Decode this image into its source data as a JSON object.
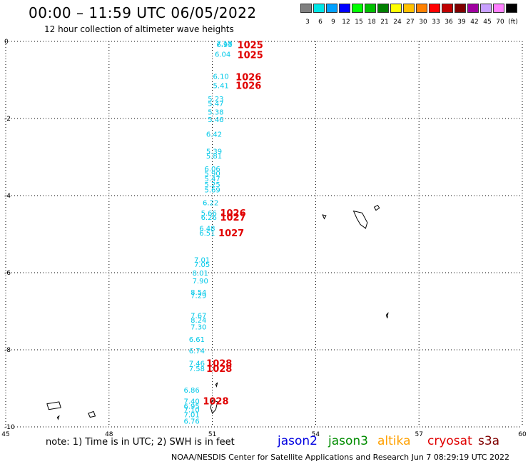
{
  "header": {
    "title": "00:00 – 11:59 UTC 06/05/2022",
    "subtitle": "12 hour collection of altimeter wave heights"
  },
  "colorbar": {
    "labels": [
      "3",
      "6",
      "9",
      "12",
      "15",
      "18",
      "21",
      "24",
      "27",
      "30",
      "33",
      "36",
      "39",
      "42",
      "45",
      "70",
      "(ft)"
    ],
    "colors": [
      "#808080",
      "#00e5e5",
      "#00a0ff",
      "#0000ff",
      "#00ff00",
      "#00c000",
      "#008000",
      "#ffff00",
      "#ffc000",
      "#ff8000",
      "#ff0000",
      "#c00000",
      "#800000",
      "#a000a0",
      "#c8a0ff",
      "#ff80ff",
      "#000000"
    ]
  },
  "axes": {
    "x_ticks": [
      "45",
      "48",
      "51",
      "54",
      "57",
      "60"
    ],
    "y_ticks": [
      "0",
      "-2",
      "-4",
      "-6",
      "-8",
      "-10"
    ],
    "x_range": [
      45,
      60
    ],
    "y_range": [
      -10,
      0
    ]
  },
  "swh_readings": [
    {
      "text": "7.18",
      "lon": 51.35,
      "lat": -0.05
    },
    {
      "text": "6.93",
      "lon": 51.35,
      "lat": -0.07
    },
    {
      "text": "6.04",
      "lon": 51.3,
      "lat": -0.32
    },
    {
      "text": "6.10",
      "lon": 51.25,
      "lat": -0.9
    },
    {
      "text": "5.41",
      "lon": 51.25,
      "lat": -1.14
    },
    {
      "text": "5.23",
      "lon": 51.1,
      "lat": -1.48
    },
    {
      "text": "5.47",
      "lon": 51.1,
      "lat": -1.6
    },
    {
      "text": "5.38",
      "lon": 51.1,
      "lat": -1.82
    },
    {
      "text": "5.46",
      "lon": 51.1,
      "lat": -2.02
    },
    {
      "text": "6.42",
      "lon": 51.05,
      "lat": -2.4
    },
    {
      "text": "5.39",
      "lon": 51.05,
      "lat": -2.84
    },
    {
      "text": "5.81",
      "lon": 51.05,
      "lat": -2.96
    },
    {
      "text": "6.06",
      "lon": 51.0,
      "lat": -3.3
    },
    {
      "text": "5.90",
      "lon": 51.0,
      "lat": -3.42
    },
    {
      "text": "5.47",
      "lon": 51.0,
      "lat": -3.56
    },
    {
      "text": "5.25",
      "lon": 51.0,
      "lat": -3.7
    },
    {
      "text": "5.69",
      "lon": 51.0,
      "lat": -3.84
    },
    {
      "text": "6.22",
      "lon": 50.95,
      "lat": -4.18
    },
    {
      "text": "5.66",
      "lon": 50.9,
      "lat": -4.44
    },
    {
      "text": "6.26",
      "lon": 50.9,
      "lat": -4.56
    },
    {
      "text": "6.48",
      "lon": 50.85,
      "lat": -4.84
    },
    {
      "text": "6.51",
      "lon": 50.85,
      "lat": -4.96
    },
    {
      "text": "7.01",
      "lon": 50.7,
      "lat": -5.66
    },
    {
      "text": "7.05",
      "lon": 50.7,
      "lat": -5.78
    },
    {
      "text": "8.01",
      "lon": 50.65,
      "lat": -6.0
    },
    {
      "text": "7.90",
      "lon": 50.65,
      "lat": -6.2
    },
    {
      "text": "8.54",
      "lon": 50.6,
      "lat": -6.5
    },
    {
      "text": "7.29",
      "lon": 50.6,
      "lat": -6.58
    },
    {
      "text": "7.67",
      "lon": 50.6,
      "lat": -7.1
    },
    {
      "text": "8.24",
      "lon": 50.6,
      "lat": -7.22
    },
    {
      "text": "7.30",
      "lon": 50.6,
      "lat": -7.4
    },
    {
      "text": "6.61",
      "lon": 50.55,
      "lat": -7.72
    },
    {
      "text": "6.74",
      "lon": 50.55,
      "lat": -8.02
    },
    {
      "text": "7.46",
      "lon": 50.55,
      "lat": -8.34
    },
    {
      "text": "7.58",
      "lon": 50.55,
      "lat": -8.48
    },
    {
      "text": "6.86",
      "lon": 50.4,
      "lat": -9.04
    },
    {
      "text": "7.40",
      "lon": 50.4,
      "lat": -9.32
    },
    {
      "text": "6.95",
      "lon": 50.4,
      "lat": -9.45
    },
    {
      "text": "7.10",
      "lon": 50.4,
      "lat": -9.55
    },
    {
      "text": "7.01",
      "lon": 50.4,
      "lat": -9.68
    },
    {
      "text": "6.76",
      "lon": 50.4,
      "lat": -9.84
    }
  ],
  "pressure_readings": [
    {
      "text": "1025",
      "lon": 52.1,
      "lat": -0.08
    },
    {
      "text": "1025",
      "lon": 52.1,
      "lat": -0.34
    },
    {
      "text": "1026",
      "lon": 52.05,
      "lat": -0.92
    },
    {
      "text": "1026",
      "lon": 52.05,
      "lat": -1.14
    },
    {
      "text": "1026",
      "lon": 51.6,
      "lat": -4.44
    },
    {
      "text": "1027",
      "lon": 51.6,
      "lat": -4.56
    },
    {
      "text": "1027",
      "lon": 51.55,
      "lat": -4.96
    },
    {
      "text": "1028",
      "lon": 51.2,
      "lat": -8.34
    },
    {
      "text": "1028",
      "lon": 51.2,
      "lat": -8.48
    },
    {
      "text": "1028",
      "lon": 51.1,
      "lat": -9.32
    }
  ],
  "reading_colors": {
    "swh": "#00c8e8",
    "pressure": "#e00000"
  },
  "islands": [
    {
      "name": "seychelles-main",
      "points": [
        [
          55.1,
          -4.4
        ],
        [
          55.35,
          -4.45
        ],
        [
          55.5,
          -4.7
        ],
        [
          55.45,
          -4.85
        ],
        [
          55.3,
          -4.75
        ],
        [
          55.2,
          -4.6
        ]
      ]
    },
    {
      "name": "seychelles-north",
      "points": [
        [
          55.7,
          -4.3
        ],
        [
          55.8,
          -4.25
        ],
        [
          55.85,
          -4.32
        ],
        [
          55.75,
          -4.38
        ]
      ]
    },
    {
      "name": "seychelles-west",
      "points": [
        [
          54.2,
          -4.5
        ],
        [
          54.3,
          -4.52
        ],
        [
          54.25,
          -4.6
        ]
      ]
    },
    {
      "name": "amirante",
      "points": [
        [
          56.05,
          -7.1
        ],
        [
          56.1,
          -7.05
        ],
        [
          56.08,
          -7.18
        ]
      ]
    },
    {
      "name": "farquhar",
      "points": [
        [
          51.1,
          -8.9
        ],
        [
          51.15,
          -8.85
        ],
        [
          51.12,
          -8.95
        ]
      ]
    },
    {
      "name": "aldabra",
      "points": [
        [
          51.0,
          -9.3
        ],
        [
          51.15,
          -9.35
        ],
        [
          51.1,
          -9.55
        ],
        [
          51.0,
          -9.65
        ],
        [
          50.95,
          -9.5
        ]
      ]
    },
    {
      "name": "cosmoledo",
      "points": [
        [
          46.2,
          -9.4
        ],
        [
          46.55,
          -9.35
        ],
        [
          46.6,
          -9.5
        ],
        [
          46.25,
          -9.55
        ]
      ]
    },
    {
      "name": "assumption",
      "points": [
        [
          47.4,
          -9.65
        ],
        [
          47.55,
          -9.6
        ],
        [
          47.6,
          -9.72
        ],
        [
          47.45,
          -9.75
        ]
      ]
    },
    {
      "name": "astove",
      "points": [
        [
          46.5,
          -9.75
        ],
        [
          46.55,
          -9.72
        ],
        [
          46.52,
          -9.8
        ]
      ]
    }
  ],
  "footer": {
    "note": "note: 1) Time is in UTC; 2) SWH is in feet",
    "legend": [
      {
        "label": "jason2",
        "color": "#0000e0"
      },
      {
        "label": "jason3",
        "color": "#008c00"
      },
      {
        "label": "altika",
        "color": "#ffa000"
      },
      {
        "label": "cryosat",
        "color": "#e00000"
      },
      {
        "label": "s3a",
        "color": "#800000"
      }
    ],
    "credit": "NOAA/NESDIS Center for Satellite Applications and Research   Jun  7 08:29:19 UTC 2022"
  }
}
